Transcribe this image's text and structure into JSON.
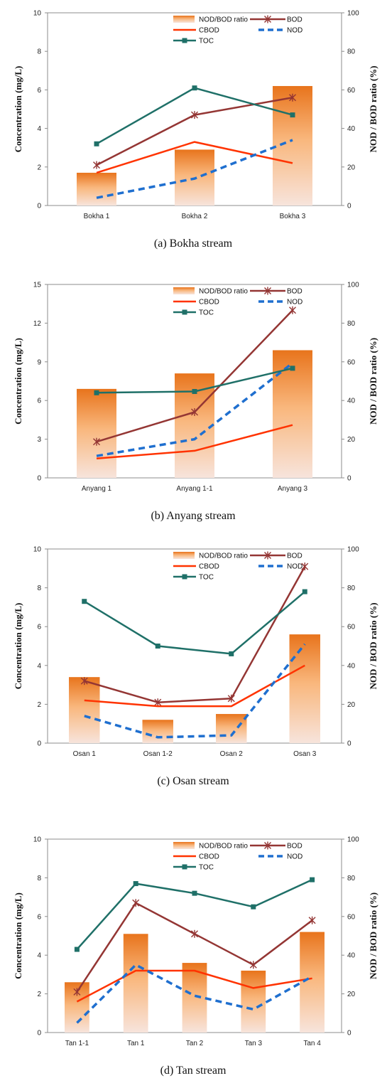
{
  "legend": {
    "ratio": "NOD/BOD ratio",
    "bod": "BOD",
    "cbod": "CBOD",
    "nod": "NOD",
    "toc": "TOC"
  },
  "axes": {
    "left": "Concentration (mg/L)",
    "right": "NOD  / BOD ratio (%)"
  },
  "colors": {
    "bar_top": "#e8741c",
    "bar_bottom": "#f7e4dc",
    "bod": "#943634",
    "cbod": "#ff3300",
    "nod": "#1f6fcf",
    "toc": "#1f7068"
  },
  "chart_data": [
    {
      "type": "bar+line",
      "caption": "(a)  Bokha  stream",
      "categories": [
        "Bokha 1",
        "Bokha 2",
        "Bokha 3"
      ],
      "ylim": [
        0,
        10
      ],
      "yticks": [
        0,
        2,
        4,
        6,
        8,
        10
      ],
      "y2lim": [
        0,
        100
      ],
      "y2ticks": [
        0,
        20,
        40,
        60,
        80,
        100
      ],
      "bars": {
        "name": "NOD/BOD ratio",
        "values": [
          17,
          29,
          62
        ]
      },
      "series": [
        {
          "name": "BOD",
          "values": [
            2.1,
            4.7,
            5.6
          ]
        },
        {
          "name": "CBOD",
          "values": [
            1.7,
            3.3,
            2.2
          ]
        },
        {
          "name": "NOD",
          "values": [
            0.4,
            1.4,
            3.4
          ]
        },
        {
          "name": "TOC",
          "values": [
            3.2,
            6.1,
            4.7
          ]
        }
      ]
    },
    {
      "type": "bar+line",
      "caption": "(b)  Anyang  stream",
      "categories": [
        "Anyang 1",
        "Anyang 1-1",
        "Anyang 3"
      ],
      "ylim": [
        0,
        15
      ],
      "yticks": [
        0,
        3,
        6,
        9,
        12,
        15
      ],
      "y2lim": [
        0,
        100
      ],
      "y2ticks": [
        0,
        20,
        40,
        60,
        80,
        100
      ],
      "bars": {
        "name": "NOD/BOD ratio",
        "values": [
          46,
          54,
          66
        ]
      },
      "series": [
        {
          "name": "BOD",
          "values": [
            2.8,
            5.1,
            13.0
          ]
        },
        {
          "name": "CBOD",
          "values": [
            1.5,
            2.1,
            4.1
          ]
        },
        {
          "name": "NOD",
          "values": [
            1.7,
            3.0,
            8.9
          ]
        },
        {
          "name": "TOC",
          "values": [
            6.6,
            6.7,
            8.5
          ]
        }
      ]
    },
    {
      "type": "bar+line",
      "caption": "(c)  Osan  stream",
      "categories": [
        "Osan 1",
        "Osan 1-2",
        "Osan 2",
        "Osan 3"
      ],
      "ylim": [
        0,
        10
      ],
      "yticks": [
        0,
        2,
        4,
        6,
        8,
        10
      ],
      "y2lim": [
        0,
        100
      ],
      "y2ticks": [
        0,
        20,
        40,
        60,
        80,
        100
      ],
      "bars": {
        "name": "NOD/BOD ratio",
        "values": [
          34,
          12,
          15,
          56
        ]
      },
      "series": [
        {
          "name": "BOD",
          "values": [
            3.2,
            2.1,
            2.3,
            9.1
          ]
        },
        {
          "name": "CBOD",
          "values": [
            2.2,
            1.9,
            1.9,
            4.0
          ]
        },
        {
          "name": "NOD",
          "values": [
            1.4,
            0.3,
            0.4,
            5.1
          ]
        },
        {
          "name": "TOC",
          "values": [
            7.3,
            5.0,
            4.6,
            7.8
          ]
        }
      ]
    },
    {
      "type": "bar+line",
      "caption": "(d)  Tan  stream",
      "categories": [
        "Tan 1-1",
        "Tan 1",
        "Tan 2",
        "Tan 3",
        "Tan 4"
      ],
      "ylim": [
        0,
        10
      ],
      "yticks": [
        0,
        2,
        4,
        6,
        8,
        10
      ],
      "y2lim": [
        0,
        100
      ],
      "y2ticks": [
        0,
        20,
        40,
        60,
        80,
        100
      ],
      "bars": {
        "name": "NOD/BOD ratio",
        "values": [
          26,
          51,
          36,
          32,
          52
        ]
      },
      "series": [
        {
          "name": "BOD",
          "values": [
            2.1,
            6.7,
            5.1,
            3.5,
            5.8
          ]
        },
        {
          "name": "CBOD",
          "values": [
            1.6,
            3.2,
            3.2,
            2.3,
            2.8
          ]
        },
        {
          "name": "NOD",
          "values": [
            0.5,
            3.5,
            1.9,
            1.2,
            2.9
          ]
        },
        {
          "name": "TOC",
          "values": [
            4.3,
            7.7,
            7.2,
            6.5,
            7.9
          ]
        }
      ]
    }
  ]
}
